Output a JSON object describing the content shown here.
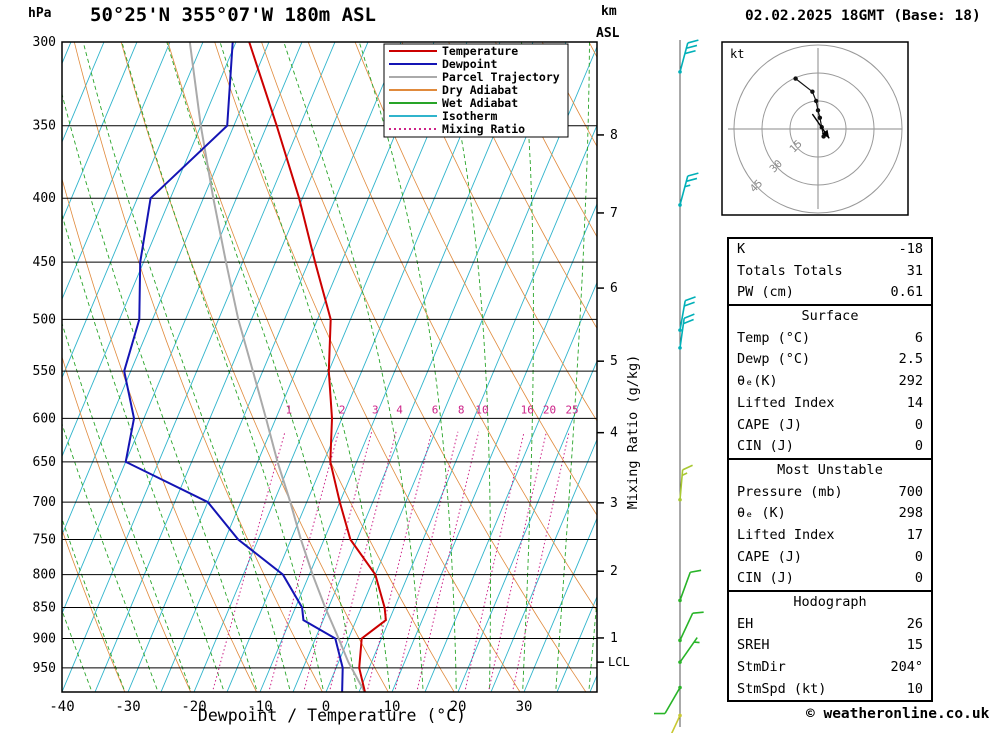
{
  "header": {
    "pressure_unit": "hPa",
    "title": "50°25'N 355°07'W 180m ASL",
    "km_label": "km",
    "asl_label": "ASL",
    "datetime": "02.02.2025 18GMT (Base: 18)"
  },
  "axes": {
    "mixing_axis_label": "Mixing Ratio (g/kg)"
  },
  "legend": [
    {
      "label": "Temperature",
      "color": "#cc0000",
      "dash": ""
    },
    {
      "label": "Dewpoint",
      "color": "#1414b4",
      "dash": ""
    },
    {
      "label": "Parcel Trajectory",
      "color": "#aaaaaa",
      "dash": ""
    },
    {
      "label": "Dry Adiabat",
      "color": "#e08a3c",
      "dash": ""
    },
    {
      "label": "Wet Adiabat",
      "color": "#28a428",
      "dash": ""
    },
    {
      "label": "Isotherm",
      "color": "#30b4cc",
      "dash": ""
    },
    {
      "label": "Mixing Ratio",
      "color": "#cc2288",
      "dash": "2 3"
    }
  ],
  "chart_data": {
    "type": "line",
    "title": "50°25'N 355°07'W 180m ASL",
    "xlabel": "Dewpoint / Temperature (°C)",
    "ylabel": "hPa",
    "x_ticks_c": [
      -40,
      -30,
      -20,
      -10,
      0,
      10,
      20,
      30
    ],
    "pressure_levels": [
      300,
      350,
      400,
      450,
      500,
      550,
      600,
      650,
      700,
      750,
      800,
      850,
      900,
      950
    ],
    "pressure_range_hpa": [
      300,
      995
    ],
    "mixing_ratios": [
      1,
      2,
      3,
      4,
      6,
      8,
      10,
      16,
      20,
      25
    ],
    "km_marks": [
      {
        "km": 8,
        "p": 356
      },
      {
        "km": 7,
        "p": 411
      },
      {
        "km": 6,
        "p": 472
      },
      {
        "km": 5,
        "p": 540
      },
      {
        "km": 4,
        "p": 616
      },
      {
        "km": 3,
        "p": 701
      },
      {
        "km": 2,
        "p": 795
      },
      {
        "km": 1,
        "p": 899
      }
    ],
    "lcl": {
      "label": "LCL",
      "p": 940
    },
    "series": [
      {
        "name": "Parcel Trajectory",
        "color": "#aaaaaa",
        "width": 2,
        "points": [
          [
            995,
            6
          ],
          [
            940,
            1.5
          ],
          [
            900,
            -1.5
          ],
          [
            850,
            -5.5
          ],
          [
            800,
            -9.5
          ],
          [
            750,
            -13.5
          ],
          [
            700,
            -17.5
          ],
          [
            650,
            -22
          ],
          [
            600,
            -26.5
          ],
          [
            550,
            -31.5
          ],
          [
            500,
            -37
          ],
          [
            450,
            -42.5
          ],
          [
            400,
            -48.5
          ],
          [
            350,
            -55
          ],
          [
            300,
            -62
          ]
        ]
      },
      {
        "name": "Dewpoint",
        "color": "#1414b4",
        "width": 2,
        "points": [
          [
            995,
            2.5
          ],
          [
            950,
            1
          ],
          [
            900,
            -2
          ],
          [
            870,
            -8
          ],
          [
            850,
            -9
          ],
          [
            800,
            -14
          ],
          [
            750,
            -23
          ],
          [
            700,
            -30
          ],
          [
            650,
            -45
          ],
          [
            600,
            -46.5
          ],
          [
            550,
            -51
          ],
          [
            500,
            -52
          ],
          [
            450,
            -55.5
          ],
          [
            400,
            -58
          ],
          [
            350,
            -51
          ],
          [
            300,
            -55.5
          ]
        ]
      },
      {
        "name": "Temperature",
        "color": "#cc0000",
        "width": 2,
        "points": [
          [
            995,
            6
          ],
          [
            950,
            3.5
          ],
          [
            900,
            2
          ],
          [
            870,
            4.5
          ],
          [
            850,
            3.5
          ],
          [
            800,
            0
          ],
          [
            750,
            -6
          ],
          [
            700,
            -10
          ],
          [
            650,
            -14
          ],
          [
            600,
            -16.5
          ],
          [
            550,
            -20
          ],
          [
            500,
            -23
          ],
          [
            450,
            -29
          ],
          [
            400,
            -35.5
          ],
          [
            350,
            -43.5
          ],
          [
            300,
            -53
          ]
        ]
      }
    ],
    "winds": [
      {
        "p": 317,
        "spd": 30,
        "dir_from": 195,
        "color": "#00b0b8"
      },
      {
        "p": 405,
        "spd": 25,
        "dir_from": 195,
        "color": "#00b0b8"
      },
      {
        "p": 510,
        "spd": 20,
        "dir_from": 190,
        "color": "#00b0b8"
      },
      {
        "p": 527,
        "spd": 20,
        "dir_from": 188,
        "color": "#00b0b8"
      },
      {
        "p": 697,
        "spd": 15,
        "dir_from": 185,
        "color": "#a8c832"
      },
      {
        "p": 839,
        "spd": 10,
        "dir_from": 200,
        "color": "#28b428"
      },
      {
        "p": 903,
        "spd": 10,
        "dir_from": 205,
        "color": "#28b428"
      },
      {
        "p": 940,
        "spd": 5,
        "dir_from": 215,
        "color": "#28b428"
      },
      {
        "p": 985,
        "spd": 10,
        "dir_from": 30,
        "color": "#28b428"
      },
      {
        "p": 1037,
        "spd": 10,
        "dir_from": 25,
        "color": "#c8c832"
      }
    ]
  },
  "hodograph": {
    "unit_label": "kt",
    "ring_values": [
      15,
      30,
      45
    ],
    "trace_kt": [
      [
        3,
        -4
      ],
      [
        2,
        1
      ],
      [
        1,
        6
      ],
      [
        0,
        10
      ],
      [
        -1,
        15
      ],
      [
        -3,
        20
      ],
      [
        -12,
        27
      ]
    ],
    "storm_arrow_kt": {
      "from": [
        -3,
        8
      ],
      "to": [
        6,
        -5
      ]
    }
  },
  "stats": {
    "sections": [
      {
        "header": "",
        "rows": [
          {
            "label": "K",
            "value": "-18"
          },
          {
            "label": "Totals Totals",
            "value": "31"
          },
          {
            "label": "PW (cm)",
            "value": "0.61"
          }
        ]
      },
      {
        "header": "Surface",
        "rows": [
          {
            "label": "Temp (°C)",
            "value": "6"
          },
          {
            "label": "Dewp (°C)",
            "value": "2.5"
          },
          {
            "label": "θₑ(K)",
            "value": "292"
          },
          {
            "label": "Lifted Index",
            "value": "14"
          },
          {
            "label": "CAPE (J)",
            "value": "0"
          },
          {
            "label": "CIN (J)",
            "value": "0"
          }
        ]
      },
      {
        "header": "Most Unstable",
        "rows": [
          {
            "label": "Pressure (mb)",
            "value": "700"
          },
          {
            "label": "θₑ (K)",
            "value": "298"
          },
          {
            "label": "Lifted Index",
            "value": "17"
          },
          {
            "label": "CAPE (J)",
            "value": "0"
          },
          {
            "label": "CIN (J)",
            "value": "0"
          }
        ]
      },
      {
        "header": "Hodograph",
        "rows": [
          {
            "label": "EH",
            "value": "26"
          },
          {
            "label": "SREH",
            "value": "15"
          },
          {
            "label": "StmDir",
            "value": "204°"
          },
          {
            "label": "StmSpd (kt)",
            "value": "10"
          }
        ]
      }
    ]
  },
  "footer": {
    "copyright": "© weatheronline.co.uk"
  },
  "colors": {
    "isotherm": "#30b4cc",
    "dry_adiabat": "#e08a3c",
    "wet_adiabat": "#28a428",
    "mixing": "#cc2288",
    "temperature": "#cc0000",
    "dewpoint": "#1414b4",
    "parcel": "#aaaaaa",
    "grid": "#000000",
    "wind_line": "#555555"
  }
}
